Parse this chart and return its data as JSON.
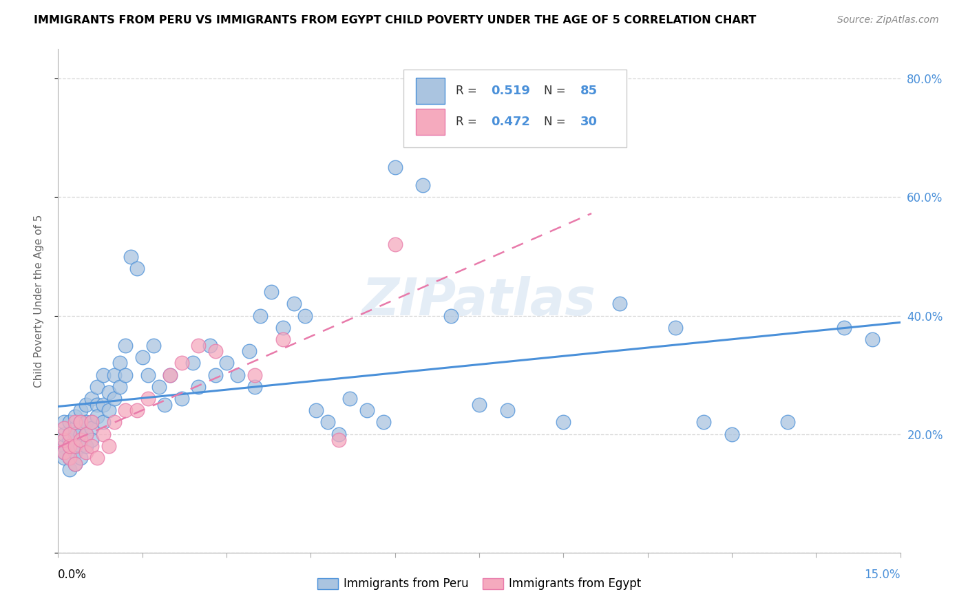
{
  "title": "IMMIGRANTS FROM PERU VS IMMIGRANTS FROM EGYPT CHILD POVERTY UNDER THE AGE OF 5 CORRELATION CHART",
  "source": "Source: ZipAtlas.com",
  "ylabel_label": "Child Poverty Under the Age of 5",
  "legend1_label": "Immigrants from Peru",
  "legend2_label": "Immigrants from Egypt",
  "peru_color": "#aac4e0",
  "egypt_color": "#f5aabe",
  "peru_line_color": "#4a90d9",
  "egypt_line_color": "#e87aaa",
  "xmin": 0.0,
  "xmax": 0.15,
  "ymin": 0.0,
  "ymax": 0.85,
  "yticks": [
    0.0,
    0.2,
    0.4,
    0.6,
    0.8
  ],
  "ytick_labels": [
    "",
    "20.0%",
    "40.0%",
    "60.0%",
    "80.0%"
  ],
  "peru_x": [
    0.001,
    0.001,
    0.001,
    0.001,
    0.001,
    0.002,
    0.002,
    0.002,
    0.002,
    0.002,
    0.002,
    0.003,
    0.003,
    0.003,
    0.003,
    0.003,
    0.003,
    0.004,
    0.004,
    0.004,
    0.004,
    0.004,
    0.005,
    0.005,
    0.005,
    0.005,
    0.006,
    0.006,
    0.006,
    0.006,
    0.007,
    0.007,
    0.007,
    0.008,
    0.008,
    0.008,
    0.009,
    0.009,
    0.01,
    0.01,
    0.011,
    0.011,
    0.012,
    0.012,
    0.013,
    0.014,
    0.015,
    0.016,
    0.017,
    0.018,
    0.019,
    0.02,
    0.022,
    0.024,
    0.025,
    0.027,
    0.028,
    0.03,
    0.032,
    0.034,
    0.035,
    0.036,
    0.038,
    0.04,
    0.042,
    0.044,
    0.046,
    0.048,
    0.05,
    0.052,
    0.055,
    0.058,
    0.06,
    0.065,
    0.07,
    0.075,
    0.08,
    0.09,
    0.1,
    0.11,
    0.115,
    0.12,
    0.13,
    0.14,
    0.145
  ],
  "peru_y": [
    0.18,
    0.2,
    0.16,
    0.22,
    0.17,
    0.2,
    0.18,
    0.22,
    0.16,
    0.14,
    0.19,
    0.21,
    0.17,
    0.2,
    0.18,
    0.15,
    0.23,
    0.2,
    0.18,
    0.22,
    0.16,
    0.24,
    0.2,
    0.22,
    0.18,
    0.25,
    0.22,
    0.26,
    0.21,
    0.19,
    0.25,
    0.23,
    0.28,
    0.25,
    0.3,
    0.22,
    0.27,
    0.24,
    0.26,
    0.3,
    0.28,
    0.32,
    0.3,
    0.35,
    0.5,
    0.48,
    0.33,
    0.3,
    0.35,
    0.28,
    0.25,
    0.3,
    0.26,
    0.32,
    0.28,
    0.35,
    0.3,
    0.32,
    0.3,
    0.34,
    0.28,
    0.4,
    0.44,
    0.38,
    0.42,
    0.4,
    0.24,
    0.22,
    0.2,
    0.26,
    0.24,
    0.22,
    0.65,
    0.62,
    0.4,
    0.25,
    0.24,
    0.22,
    0.42,
    0.38,
    0.22,
    0.2,
    0.22,
    0.38,
    0.36
  ],
  "egypt_x": [
    0.001,
    0.001,
    0.001,
    0.002,
    0.002,
    0.002,
    0.003,
    0.003,
    0.003,
    0.004,
    0.004,
    0.005,
    0.005,
    0.006,
    0.006,
    0.007,
    0.008,
    0.009,
    0.01,
    0.012,
    0.014,
    0.016,
    0.02,
    0.022,
    0.025,
    0.028,
    0.035,
    0.04,
    0.05,
    0.06
  ],
  "egypt_y": [
    0.17,
    0.19,
    0.21,
    0.16,
    0.18,
    0.2,
    0.15,
    0.18,
    0.22,
    0.19,
    0.22,
    0.17,
    0.2,
    0.18,
    0.22,
    0.16,
    0.2,
    0.18,
    0.22,
    0.24,
    0.24,
    0.26,
    0.3,
    0.32,
    0.35,
    0.34,
    0.3,
    0.36,
    0.19,
    0.52
  ]
}
